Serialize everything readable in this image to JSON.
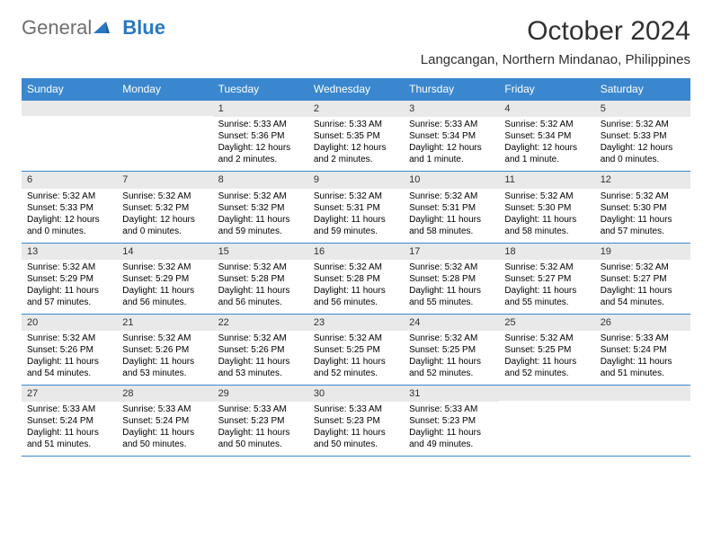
{
  "brand": {
    "part1": "General",
    "part2": "Blue"
  },
  "title": "October 2024",
  "location": "Langcangan, Northern Mindanao, Philippines",
  "colors": {
    "header_bg": "#3a87cf",
    "header_text": "#ffffff",
    "daynum_bg": "#e9e9e9",
    "rule": "#3a87cf",
    "brand_gray": "#6f6f6f",
    "brand_blue": "#2a78c2"
  },
  "daysOfWeek": [
    "Sunday",
    "Monday",
    "Tuesday",
    "Wednesday",
    "Thursday",
    "Friday",
    "Saturday"
  ],
  "weeks": [
    [
      {
        "n": "",
        "sunrise": "",
        "sunset": "",
        "daylight": ""
      },
      {
        "n": "",
        "sunrise": "",
        "sunset": "",
        "daylight": ""
      },
      {
        "n": "1",
        "sunrise": "Sunrise: 5:33 AM",
        "sunset": "Sunset: 5:36 PM",
        "daylight": "Daylight: 12 hours and 2 minutes."
      },
      {
        "n": "2",
        "sunrise": "Sunrise: 5:33 AM",
        "sunset": "Sunset: 5:35 PM",
        "daylight": "Daylight: 12 hours and 2 minutes."
      },
      {
        "n": "3",
        "sunrise": "Sunrise: 5:33 AM",
        "sunset": "Sunset: 5:34 PM",
        "daylight": "Daylight: 12 hours and 1 minute."
      },
      {
        "n": "4",
        "sunrise": "Sunrise: 5:32 AM",
        "sunset": "Sunset: 5:34 PM",
        "daylight": "Daylight: 12 hours and 1 minute."
      },
      {
        "n": "5",
        "sunrise": "Sunrise: 5:32 AM",
        "sunset": "Sunset: 5:33 PM",
        "daylight": "Daylight: 12 hours and 0 minutes."
      }
    ],
    [
      {
        "n": "6",
        "sunrise": "Sunrise: 5:32 AM",
        "sunset": "Sunset: 5:33 PM",
        "daylight": "Daylight: 12 hours and 0 minutes."
      },
      {
        "n": "7",
        "sunrise": "Sunrise: 5:32 AM",
        "sunset": "Sunset: 5:32 PM",
        "daylight": "Daylight: 12 hours and 0 minutes."
      },
      {
        "n": "8",
        "sunrise": "Sunrise: 5:32 AM",
        "sunset": "Sunset: 5:32 PM",
        "daylight": "Daylight: 11 hours and 59 minutes."
      },
      {
        "n": "9",
        "sunrise": "Sunrise: 5:32 AM",
        "sunset": "Sunset: 5:31 PM",
        "daylight": "Daylight: 11 hours and 59 minutes."
      },
      {
        "n": "10",
        "sunrise": "Sunrise: 5:32 AM",
        "sunset": "Sunset: 5:31 PM",
        "daylight": "Daylight: 11 hours and 58 minutes."
      },
      {
        "n": "11",
        "sunrise": "Sunrise: 5:32 AM",
        "sunset": "Sunset: 5:30 PM",
        "daylight": "Daylight: 11 hours and 58 minutes."
      },
      {
        "n": "12",
        "sunrise": "Sunrise: 5:32 AM",
        "sunset": "Sunset: 5:30 PM",
        "daylight": "Daylight: 11 hours and 57 minutes."
      }
    ],
    [
      {
        "n": "13",
        "sunrise": "Sunrise: 5:32 AM",
        "sunset": "Sunset: 5:29 PM",
        "daylight": "Daylight: 11 hours and 57 minutes."
      },
      {
        "n": "14",
        "sunrise": "Sunrise: 5:32 AM",
        "sunset": "Sunset: 5:29 PM",
        "daylight": "Daylight: 11 hours and 56 minutes."
      },
      {
        "n": "15",
        "sunrise": "Sunrise: 5:32 AM",
        "sunset": "Sunset: 5:28 PM",
        "daylight": "Daylight: 11 hours and 56 minutes."
      },
      {
        "n": "16",
        "sunrise": "Sunrise: 5:32 AM",
        "sunset": "Sunset: 5:28 PM",
        "daylight": "Daylight: 11 hours and 56 minutes."
      },
      {
        "n": "17",
        "sunrise": "Sunrise: 5:32 AM",
        "sunset": "Sunset: 5:28 PM",
        "daylight": "Daylight: 11 hours and 55 minutes."
      },
      {
        "n": "18",
        "sunrise": "Sunrise: 5:32 AM",
        "sunset": "Sunset: 5:27 PM",
        "daylight": "Daylight: 11 hours and 55 minutes."
      },
      {
        "n": "19",
        "sunrise": "Sunrise: 5:32 AM",
        "sunset": "Sunset: 5:27 PM",
        "daylight": "Daylight: 11 hours and 54 minutes."
      }
    ],
    [
      {
        "n": "20",
        "sunrise": "Sunrise: 5:32 AM",
        "sunset": "Sunset: 5:26 PM",
        "daylight": "Daylight: 11 hours and 54 minutes."
      },
      {
        "n": "21",
        "sunrise": "Sunrise: 5:32 AM",
        "sunset": "Sunset: 5:26 PM",
        "daylight": "Daylight: 11 hours and 53 minutes."
      },
      {
        "n": "22",
        "sunrise": "Sunrise: 5:32 AM",
        "sunset": "Sunset: 5:26 PM",
        "daylight": "Daylight: 11 hours and 53 minutes."
      },
      {
        "n": "23",
        "sunrise": "Sunrise: 5:32 AM",
        "sunset": "Sunset: 5:25 PM",
        "daylight": "Daylight: 11 hours and 52 minutes."
      },
      {
        "n": "24",
        "sunrise": "Sunrise: 5:32 AM",
        "sunset": "Sunset: 5:25 PM",
        "daylight": "Daylight: 11 hours and 52 minutes."
      },
      {
        "n": "25",
        "sunrise": "Sunrise: 5:32 AM",
        "sunset": "Sunset: 5:25 PM",
        "daylight": "Daylight: 11 hours and 52 minutes."
      },
      {
        "n": "26",
        "sunrise": "Sunrise: 5:33 AM",
        "sunset": "Sunset: 5:24 PM",
        "daylight": "Daylight: 11 hours and 51 minutes."
      }
    ],
    [
      {
        "n": "27",
        "sunrise": "Sunrise: 5:33 AM",
        "sunset": "Sunset: 5:24 PM",
        "daylight": "Daylight: 11 hours and 51 minutes."
      },
      {
        "n": "28",
        "sunrise": "Sunrise: 5:33 AM",
        "sunset": "Sunset: 5:24 PM",
        "daylight": "Daylight: 11 hours and 50 minutes."
      },
      {
        "n": "29",
        "sunrise": "Sunrise: 5:33 AM",
        "sunset": "Sunset: 5:23 PM",
        "daylight": "Daylight: 11 hours and 50 minutes."
      },
      {
        "n": "30",
        "sunrise": "Sunrise: 5:33 AM",
        "sunset": "Sunset: 5:23 PM",
        "daylight": "Daylight: 11 hours and 50 minutes."
      },
      {
        "n": "31",
        "sunrise": "Sunrise: 5:33 AM",
        "sunset": "Sunset: 5:23 PM",
        "daylight": "Daylight: 11 hours and 49 minutes."
      },
      {
        "n": "",
        "sunrise": "",
        "sunset": "",
        "daylight": ""
      },
      {
        "n": "",
        "sunrise": "",
        "sunset": "",
        "daylight": ""
      }
    ]
  ]
}
